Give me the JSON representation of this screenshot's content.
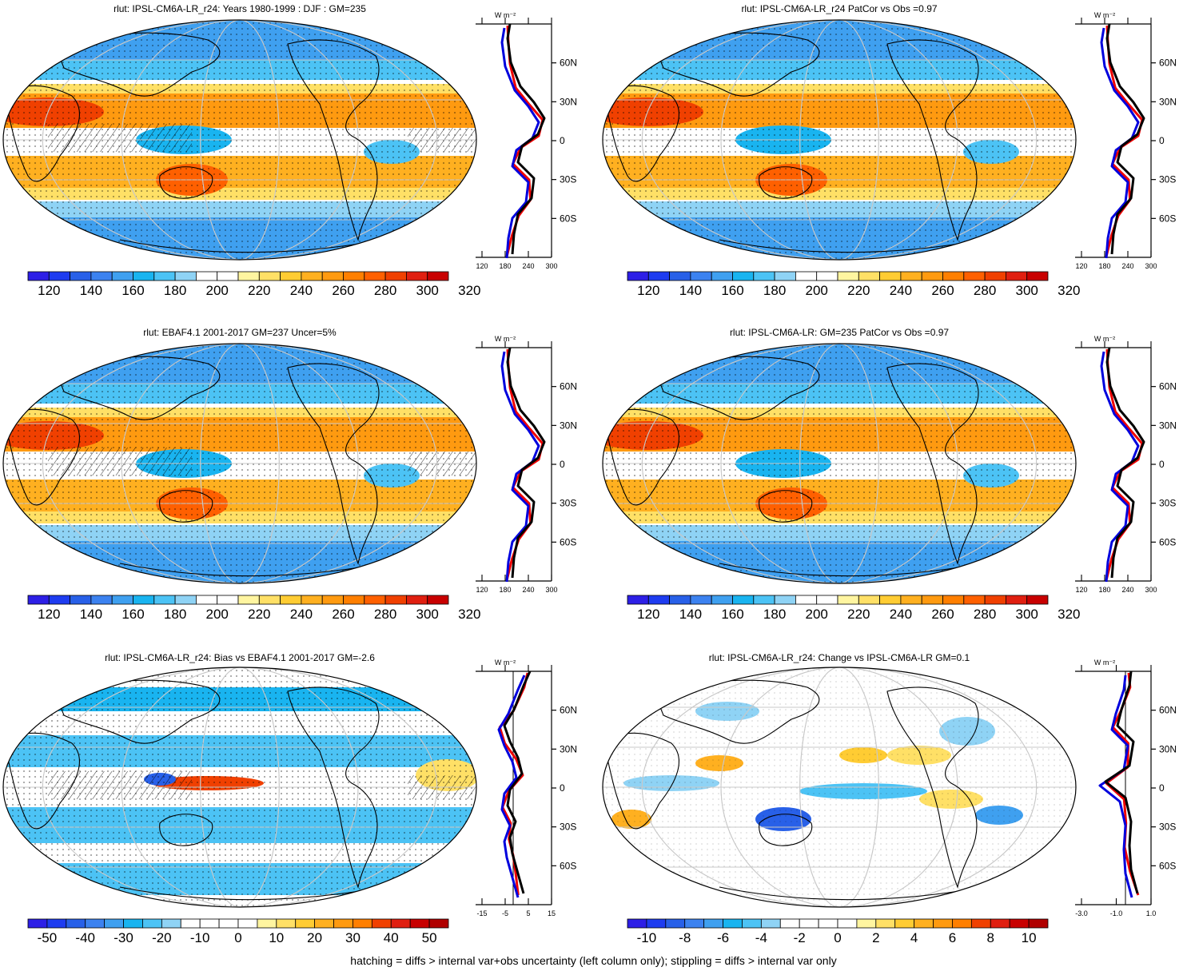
{
  "footer": "hatching = diffs > internal var+obs uncertainty (left column only); stippling = diffs > internal var only",
  "colors": {
    "abs_scale": [
      "#2d1fe6",
      "#1e3cf0",
      "#2860e8",
      "#3c82f0",
      "#3fa0f0",
      "#19b4f0",
      "#4cc3f5",
      "#8fd3f5",
      "#ffffff",
      "#ffffff",
      "#fff5a0",
      "#ffe066",
      "#ffcc33",
      "#ffb020",
      "#ff9a10",
      "#ff7f00",
      "#ff6000",
      "#f04000",
      "#e01f10",
      "#c80000"
    ],
    "diff_scale": [
      "#2d1fe6",
      "#1e3cf0",
      "#2860e8",
      "#3c82f0",
      "#3fa0f0",
      "#19b4f0",
      "#4cc3f5",
      "#8fd3f5",
      "#ffffff",
      "#ffffff",
      "#ffffff",
      "#ffffff",
      "#fff5a0",
      "#ffe066",
      "#ffcc33",
      "#ffb020",
      "#ff9a10",
      "#ff7f00",
      "#f04000",
      "#e01f10",
      "#c80000",
      "#b00000"
    ],
    "model_line": "#0000dd",
    "obs_line": "#ee0000",
    "mean_line": "#000000",
    "grid": "#c8c8c8"
  },
  "panels": [
    {
      "title": "rlut: IPSL-CM6A-LR_r24: Years 1980-1999 : DJF : GM=235",
      "kind": "abs",
      "hatching": true,
      "stippling": true,
      "zonal": {
        "units": "W m⁻²",
        "x_ticks": [
          "120",
          "180",
          "240",
          "300"
        ],
        "lat_ticks": [
          "60N",
          "30N",
          "0",
          "30S",
          "60S"
        ]
      }
    },
    {
      "title": "rlut: IPSL-CM6A-LR_r24 PatCor vs Obs =0.97",
      "kind": "abs",
      "hatching": false,
      "stippling": true,
      "zonal": {
        "units": "W m⁻²",
        "x_ticks": [
          "120",
          "180",
          "240",
          "300"
        ],
        "lat_ticks": [
          "60N",
          "30N",
          "0",
          "30S",
          "60S"
        ]
      }
    },
    {
      "title": "rlut: EBAF4.1 2001-2017 GM=237 Uncer=5%",
      "kind": "abs",
      "hatching": true,
      "stippling": true,
      "zonal": {
        "units": "W m⁻²",
        "x_ticks": [
          "120",
          "180",
          "240",
          "300"
        ],
        "lat_ticks": [
          "60N",
          "30N",
          "0",
          "30S",
          "60S"
        ]
      }
    },
    {
      "title": "rlut: IPSL-CM6A-LR: GM=235 PatCor vs Obs =0.97",
      "kind": "abs",
      "hatching": false,
      "stippling": true,
      "zonal": {
        "units": "W m⁻²",
        "x_ticks": [
          "120",
          "180",
          "240",
          "300"
        ],
        "lat_ticks": [
          "60N",
          "30N",
          "0",
          "30S",
          "60S"
        ]
      }
    },
    {
      "title": "rlut: IPSL-CM6A-LR_r24: Bias vs EBAF4.1 2001-2017 GM=-2.6",
      "kind": "bias",
      "hatching": true,
      "stippling": true,
      "zonal": {
        "units": "W m⁻²",
        "x_ticks": [
          "-15",
          "-5",
          "5",
          "15"
        ],
        "lat_ticks": [
          "60N",
          "30N",
          "0",
          "30S",
          "60S"
        ]
      }
    },
    {
      "title": "rlut: IPSL-CM6A-LR_r24: Change vs IPSL-CM6A-LR GM=0.1",
      "kind": "change",
      "hatching": false,
      "stippling": true,
      "zonal": {
        "units": "W m⁻²",
        "x_ticks": [
          "-3.0",
          "-1.0",
          "1.0"
        ],
        "lat_ticks": [
          "60N",
          "30N",
          "0",
          "30S",
          "60S"
        ]
      }
    }
  ],
  "colorbars": [
    {
      "labels": [
        "120",
        "140",
        "160",
        "180",
        "200",
        "220",
        "240",
        "260",
        "280",
        "300",
        "320"
      ],
      "scale": "abs_scale"
    },
    {
      "labels": [
        "120",
        "140",
        "160",
        "180",
        "200",
        "220",
        "240",
        "260",
        "280",
        "300",
        "320"
      ],
      "scale": "abs_scale"
    },
    {
      "labels": [
        "120",
        "140",
        "160",
        "180",
        "200",
        "220",
        "240",
        "260",
        "280",
        "300",
        "320"
      ],
      "scale": "abs_scale"
    },
    {
      "labels": [
        "120",
        "140",
        "160",
        "180",
        "200",
        "220",
        "240",
        "260",
        "280",
        "300",
        "320"
      ],
      "scale": "abs_scale"
    },
    {
      "labels": [
        "-50",
        "-40",
        "-30",
        "-20",
        "-10",
        "0",
        "10",
        "20",
        "30",
        "40",
        "50"
      ],
      "scale": "diff_scale"
    },
    {
      "labels": [
        "-10",
        "-8",
        "-6",
        "-4",
        "-2",
        "0",
        "2",
        "4",
        "6",
        "8",
        "10"
      ],
      "scale": "diff_scale"
    }
  ]
}
